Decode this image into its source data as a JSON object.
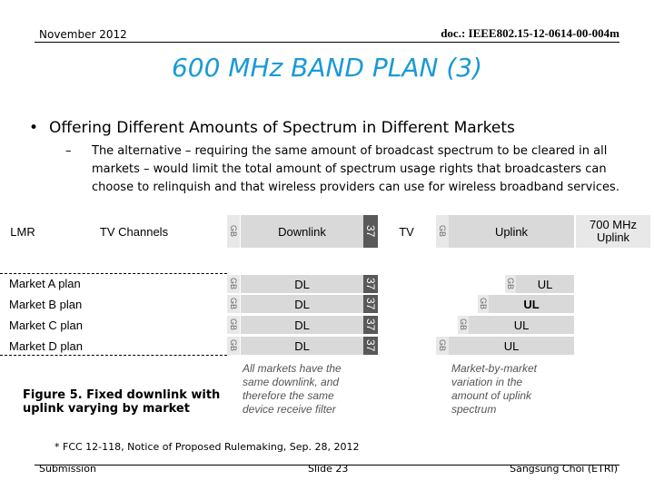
{
  "header": {
    "date": "November 2012",
    "doc_id": "doc.: IEEE802.15-12-0614-00-004m"
  },
  "slide": {
    "title": "600 MHz BAND PLAN (3)",
    "bullet": "Offering Different Amounts of Spectrum in Different Markets",
    "bullet_marker": "•",
    "sub_marker": "–",
    "sub_text": "The alternative – requiring the same amount of broadcast spectrum to be cleared in all markets – would limit the total amount of spectrum usage rights that broadcasters can choose to relinquish and that wireless providers can use for wireless broadband services."
  },
  "figure": {
    "top_row": {
      "lmr": "LMR",
      "tv_channels": "TV Channels",
      "gb": "GB",
      "downlink": "Downlink",
      "ch37": "37",
      "tv": "TV",
      "gb2": "GB",
      "uplink": "Uplink",
      "mhz700_line1": "700 MHz",
      "mhz700_line2": "Uplink"
    },
    "markets": [
      {
        "label": "Market A plan",
        "gb": "GB",
        "dl": "DL",
        "ch37": "37",
        "ul_gb": "GB",
        "ul": "UL"
      },
      {
        "label": "Market B plan",
        "gb": "GB",
        "dl": "DL",
        "ch37": "37",
        "ul_gb": "GB",
        "ul": "UL"
      },
      {
        "label": "Market C plan",
        "gb": "GB",
        "dl": "DL",
        "ch37": "37",
        "ul_gb": "GB",
        "ul": "UL"
      },
      {
        "label": "Market D plan",
        "gb": "GB",
        "dl": "DL",
        "ch37": "37",
        "ul_gb": "GB",
        "ul": "UL"
      }
    ],
    "note_left": [
      "All markets have the",
      "same downlink, and",
      "therefore the same",
      "device receive filter"
    ],
    "note_right": [
      "Market-by-market",
      "variation in the",
      "amount of uplink",
      "spectrum"
    ],
    "caption_line1": "Figure 5. Fixed downlink with",
    "caption_line2": "uplink varying by market"
  },
  "footnote": "* FCC 12-118, Notice of Proposed Rulemaking, Sep. 28, 2012",
  "footer": {
    "left": "Submission",
    "center": "Slide 23",
    "right": "Sangsung Choi (ETRI)"
  }
}
